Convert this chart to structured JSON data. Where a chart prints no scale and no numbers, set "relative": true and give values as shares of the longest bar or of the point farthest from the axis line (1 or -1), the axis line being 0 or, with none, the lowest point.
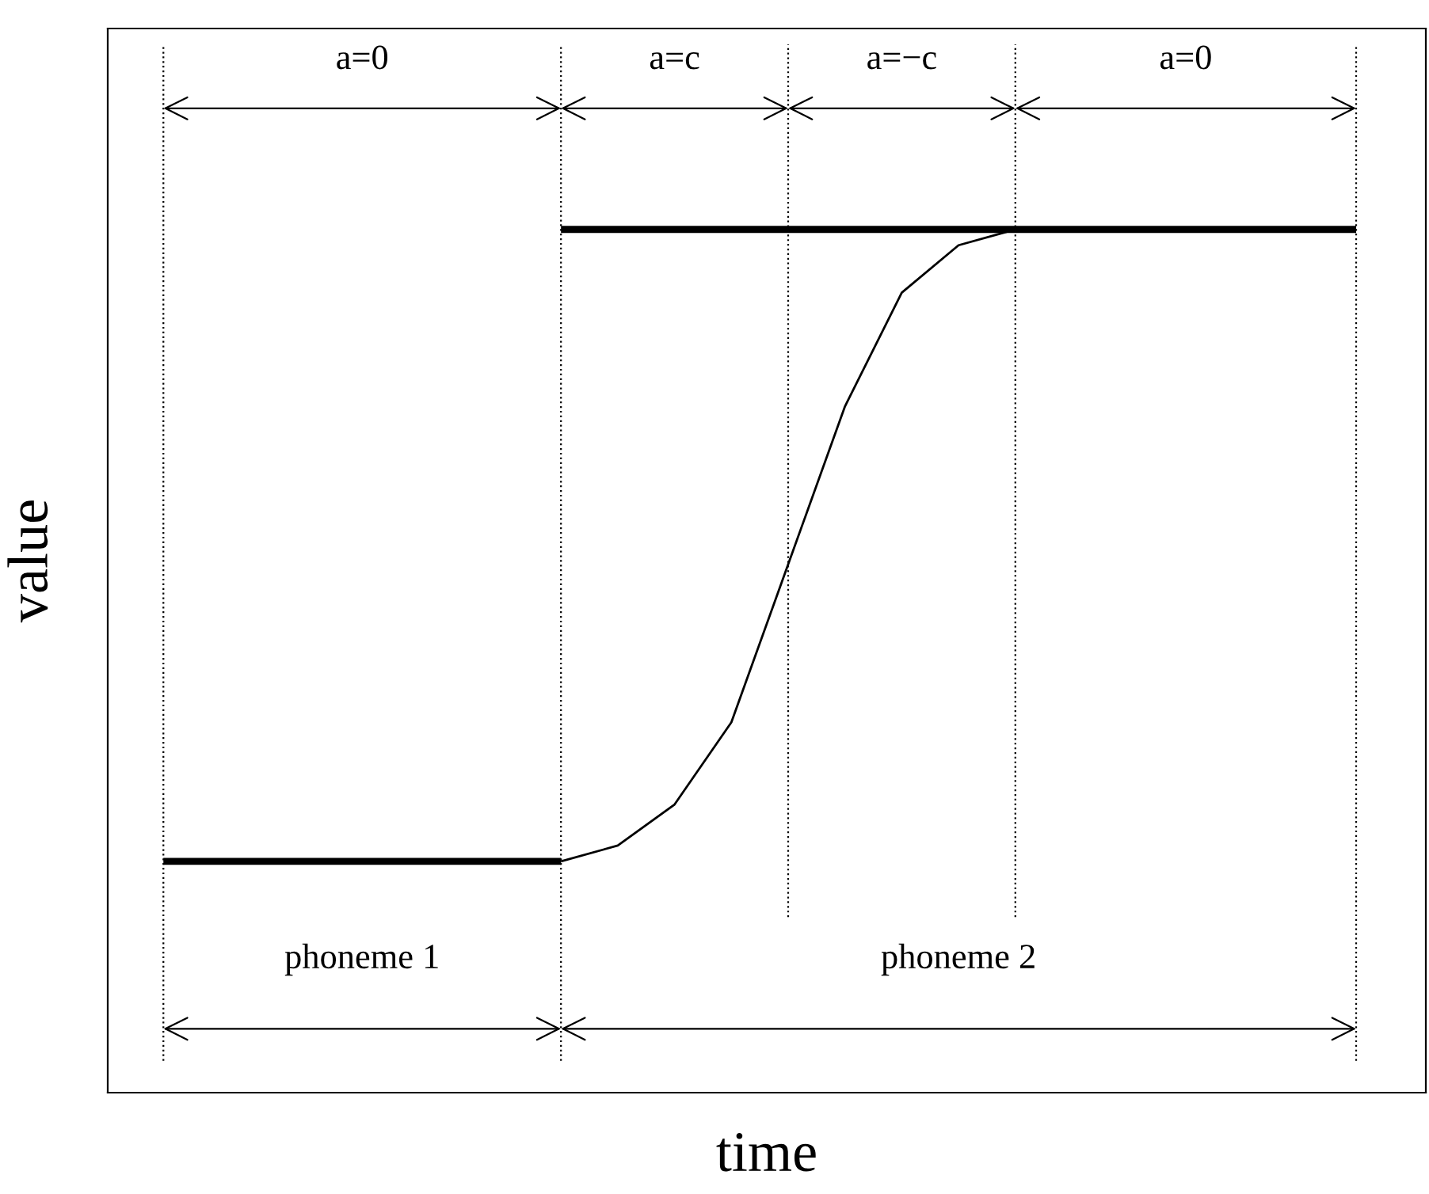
{
  "chart_data": {
    "type": "line",
    "relative": true,
    "xlabel": "time",
    "ylabel": "value",
    "categories": [
      null,
      null,
      null,
      null,
      null,
      null,
      null,
      null,
      null,
      null,
      null,
      null,
      null,
      null,
      null,
      null,
      null,
      null,
      null,
      null,
      null,
      null
    ],
    "series": [
      {
        "type": "step",
        "color": "#000000",
        "values": [
          0,
          0,
          0,
          0,
          0,
          0,
          0,
          0,
          null,
          null,
          null,
          null,
          null,
          null,
          null,
          null,
          null,
          null,
          null,
          null,
          null,
          null
        ]
      },
      {
        "type": "step",
        "color": "#000000",
        "values": [
          null,
          null,
          null,
          null,
          null,
          null,
          null,
          1,
          1,
          1,
          1,
          1,
          1,
          1,
          1,
          1,
          1,
          1,
          1,
          1,
          1,
          1
        ]
      },
      {
        "color": "#000000",
        "values": [
          null,
          null,
          null,
          null,
          null,
          null,
          null,
          0,
          0.025,
          0.09,
          0.22,
          0.47,
          0.72,
          0.9,
          0.975,
          1,
          null,
          null,
          null,
          null,
          null,
          null
        ]
      }
    ],
    "annotations": [
      "a=0",
      "a=c",
      "a=−c",
      "a=0",
      "phoneme 1",
      "phoneme 2"
    ]
  }
}
